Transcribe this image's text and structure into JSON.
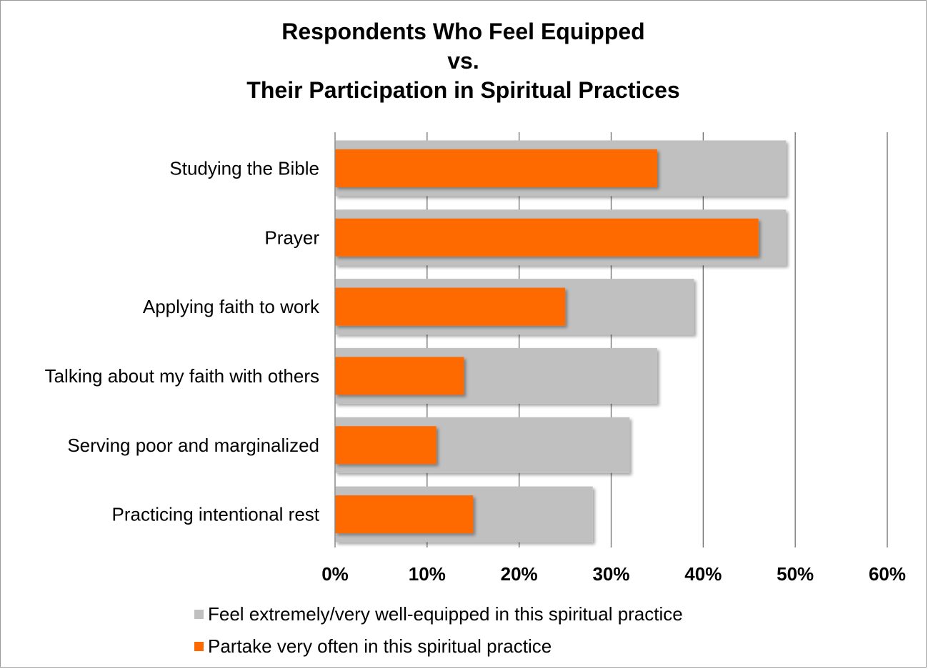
{
  "chart_data": {
    "type": "bar",
    "orientation": "horizontal",
    "title_lines": [
      "Respondents Who Feel Equipped",
      "vs.",
      "Their Participation in Spiritual Practices"
    ],
    "categories": [
      "Studying the Bible",
      "Prayer",
      "Applying faith to work",
      "Talking about my faith with others",
      "Serving poor and marginalized",
      "Practicing intentional rest"
    ],
    "series": [
      {
        "name": "Feel extremely/very well-equipped in this spiritual practice",
        "color": "#c0c0c0",
        "values": [
          49,
          49,
          39,
          35,
          32,
          28
        ]
      },
      {
        "name": "Partake very often in this spiritual practice",
        "color": "#ff6a00",
        "values": [
          35,
          46,
          25,
          14,
          11,
          15
        ]
      }
    ],
    "xlim": [
      0,
      60
    ],
    "xticks": [
      "0%",
      "10%",
      "20%",
      "30%",
      "40%",
      "50%",
      "60%"
    ],
    "grid": true,
    "legend_position": "bottom"
  }
}
